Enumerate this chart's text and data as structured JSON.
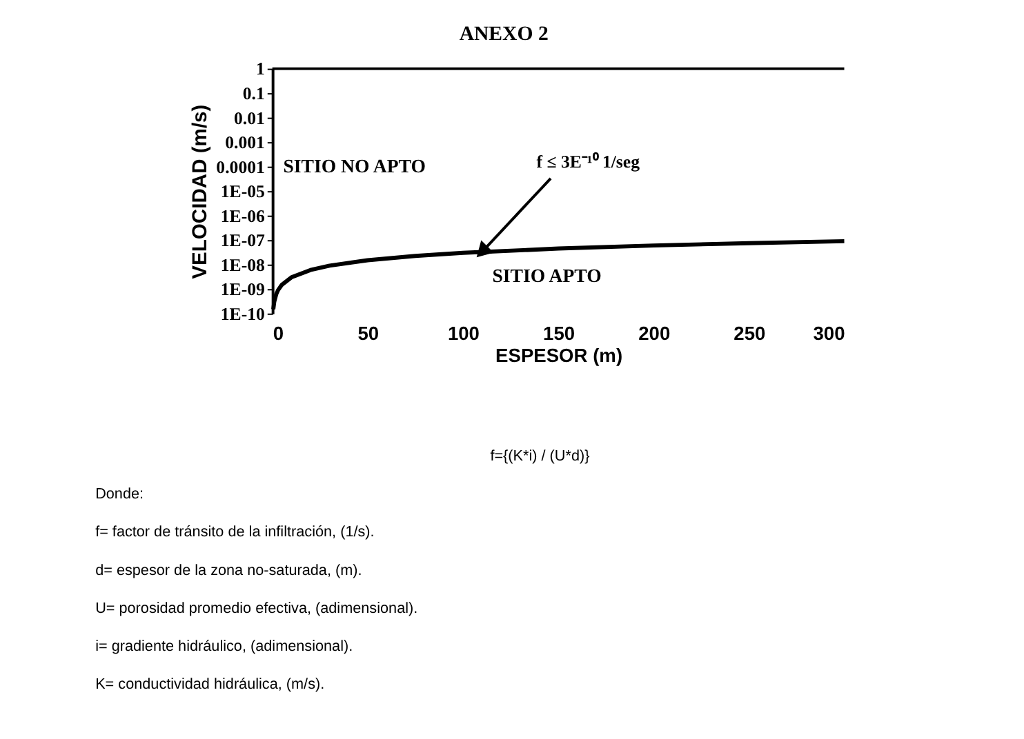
{
  "chart_data": {
    "type": "line",
    "title": "ANEXO 2",
    "xlabel": "ESPESOR (m)",
    "ylabel": "VELOCIDAD (m/s)",
    "x": [
      0.5,
      1,
      2,
      3,
      5,
      10,
      20,
      30,
      50,
      75,
      100,
      150,
      200,
      250,
      300
    ],
    "series": [
      {
        "color": "#000000",
        "values": [
          1.5e-10,
          3e-10,
          6e-10,
          9e-10,
          1.5e-09,
          3e-09,
          6e-09,
          9e-09,
          1.5e-08,
          2.25e-08,
          3e-08,
          4.5e-08,
          6e-08,
          7.5e-08,
          9e-08
        ]
      }
    ],
    "xlim": [
      0,
      300
    ],
    "xticks": [
      0,
      50,
      100,
      150,
      200,
      250,
      300
    ],
    "ylim": [
      1e-10,
      1
    ],
    "yticks": [
      1,
      0.1,
      0.01,
      0.001,
      0.0001,
      {
        "value": 1e-05,
        "label": "1E-05"
      },
      {
        "value": 1e-06,
        "label": "1E-06"
      },
      {
        "value": 1e-07,
        "label": "1E-07"
      },
      {
        "value": 1e-08,
        "label": "1E-08"
      },
      {
        "value": 1e-09,
        "label": "1E-09"
      },
      {
        "value": 1e-10,
        "label": "1E-10"
      }
    ],
    "log": "y",
    "grid": false,
    "marker": "none",
    "line_style": "solid",
    "annotations": [
      "SITIO NO APTO",
      "SITIO APTO",
      {
        "text": "f ≤ 3E⁻¹⁰ 1/seg",
        "x": 110,
        "y": 3.3e-08
      },
      "f={(K*i) / (U*d)}",
      "Donde:",
      "f=  factor de tránsito de la infiltración, (1/s).",
      "d= espesor de la zona no-saturada, (m).",
      "U= porosidad promedio efectiva, (adimensional).",
      "i=  gradiente hidráulico, (adimensional).",
      "K= conductividad hidráulica, (m/s)."
    ]
  }
}
